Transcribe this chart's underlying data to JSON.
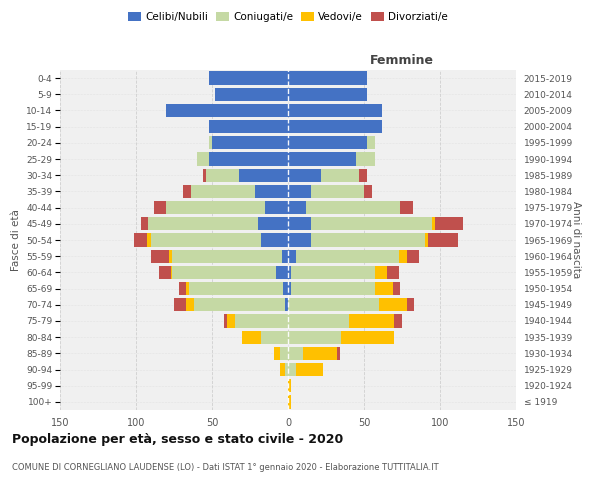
{
  "age_groups": [
    "100+",
    "95-99",
    "90-94",
    "85-89",
    "80-84",
    "75-79",
    "70-74",
    "65-69",
    "60-64",
    "55-59",
    "50-54",
    "45-49",
    "40-44",
    "35-39",
    "30-34",
    "25-29",
    "20-24",
    "15-19",
    "10-14",
    "5-9",
    "0-4"
  ],
  "birth_years": [
    "≤ 1919",
    "1920-1924",
    "1925-1929",
    "1930-1934",
    "1935-1939",
    "1940-1944",
    "1945-1949",
    "1950-1954",
    "1955-1959",
    "1960-1964",
    "1965-1969",
    "1970-1974",
    "1975-1979",
    "1980-1984",
    "1985-1989",
    "1990-1994",
    "1995-1999",
    "2000-2004",
    "2005-2009",
    "2010-2014",
    "2015-2019"
  ],
  "male_celibi": [
    0,
    0,
    0,
    0,
    0,
    0,
    2,
    3,
    8,
    4,
    18,
    20,
    15,
    22,
    32,
    52,
    50,
    52,
    80,
    48,
    52
  ],
  "male_coniugati": [
    0,
    0,
    2,
    5,
    18,
    35,
    60,
    62,
    68,
    72,
    72,
    72,
    65,
    42,
    22,
    8,
    2,
    0,
    0,
    0,
    0
  ],
  "male_vedovi": [
    0,
    0,
    3,
    4,
    12,
    5,
    5,
    2,
    1,
    2,
    3,
    0,
    0,
    0,
    0,
    0,
    0,
    0,
    0,
    0,
    0
  ],
  "male_divorziati": [
    0,
    0,
    0,
    0,
    0,
    2,
    8,
    5,
    8,
    12,
    8,
    5,
    8,
    5,
    2,
    0,
    0,
    0,
    0,
    0,
    0
  ],
  "female_celibi": [
    0,
    0,
    0,
    0,
    0,
    0,
    0,
    2,
    2,
    5,
    15,
    15,
    12,
    15,
    22,
    45,
    52,
    62,
    62,
    52,
    52
  ],
  "female_coniugati": [
    0,
    0,
    5,
    10,
    35,
    40,
    60,
    55,
    55,
    68,
    75,
    80,
    62,
    35,
    25,
    12,
    5,
    0,
    0,
    0,
    0
  ],
  "female_vedovi": [
    2,
    2,
    18,
    22,
    35,
    30,
    18,
    12,
    8,
    5,
    2,
    2,
    0,
    0,
    0,
    0,
    0,
    0,
    0,
    0,
    0
  ],
  "female_divorziati": [
    0,
    0,
    0,
    2,
    0,
    5,
    5,
    5,
    8,
    8,
    20,
    18,
    8,
    5,
    5,
    0,
    0,
    0,
    0,
    0,
    0
  ],
  "colors": {
    "celibi": "#4472c4",
    "coniugati": "#c5d9a4",
    "vedovi": "#ffc000",
    "divorziati": "#c0504d"
  },
  "legend_labels": [
    "Celibi/Nubili",
    "Coniugati/e",
    "Vedovi/e",
    "Divorziati/e"
  ],
  "title": "Popolazione per età, sesso e stato civile - 2020",
  "subtitle": "COMUNE DI CORNEGLIANO LAUDENSE (LO) - Dati ISTAT 1° gennaio 2020 - Elaborazione TUTTITALIA.IT",
  "xlabel_right": "Femmine",
  "ylabel_left": "Fasce di età",
  "ylabel_right": "Anni di nascita",
  "xlim": 150,
  "bg_color": "#ffffff",
  "grid_color": "#cccccc",
  "face_color": "#f0f0f0"
}
